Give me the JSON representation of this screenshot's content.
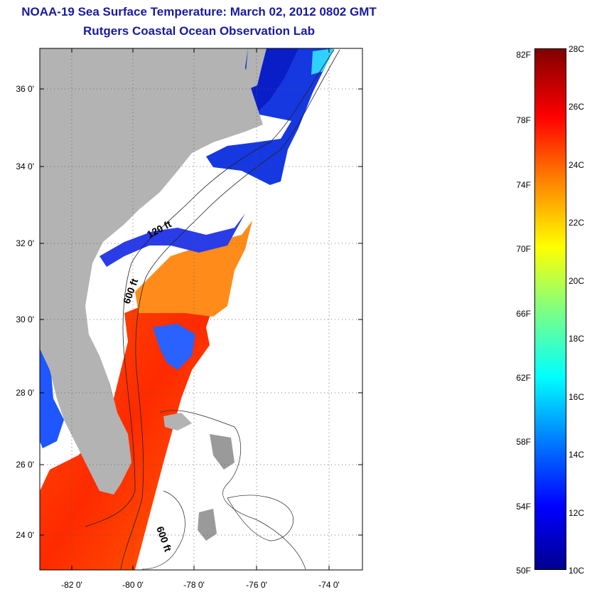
{
  "header": {
    "title": "NOAA-19 Sea Surface Temperature:  March 02, 2012 0802 GMT",
    "subtitle": "Rutgers Coastal Ocean Observation Lab"
  },
  "map": {
    "y_labels": [
      "36 0'",
      "34 0'",
      "32 0'",
      "30 0'",
      "28 0'",
      "26 0'",
      "24 0'"
    ],
    "x_labels": [
      "-82 0'",
      "-80 0'",
      "-78 0'",
      "-76 0'",
      "-74 0'"
    ],
    "contour_labels": [
      "120 ft",
      "600 ft",
      "600 ft"
    ],
    "land_color": "#b3b3b3",
    "ocean_no_data_color": "#ffffff"
  },
  "colorbar": {
    "fahrenheit_labels": [
      "82F",
      "78F",
      "74F",
      "70F",
      "66F",
      "62F",
      "58F",
      "54F",
      "50F"
    ],
    "celsius_labels": [
      "28C",
      "26C",
      "24C",
      "22C",
      "20C",
      "18C",
      "16C",
      "14C",
      "12C",
      "10C"
    ],
    "colormap": "jet",
    "colors": [
      "#00008f",
      "#0000ff",
      "#0080ff",
      "#00ffff",
      "#80ff80",
      "#ffff00",
      "#ff8000",
      "#ff0000",
      "#800000"
    ]
  }
}
